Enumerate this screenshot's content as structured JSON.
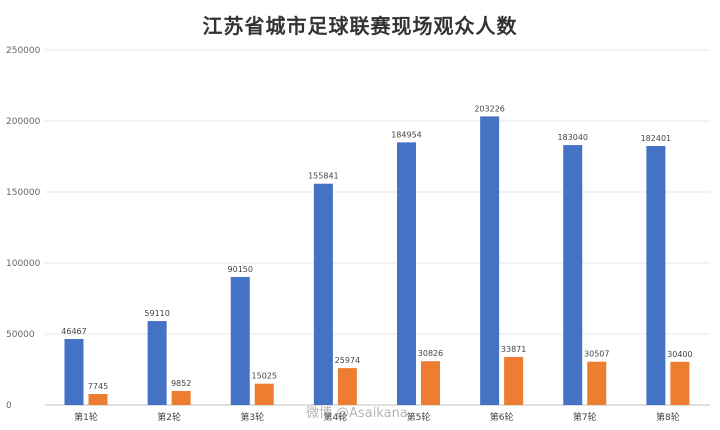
{
  "chart_data": {
    "type": "bar",
    "title": "江苏省城市足球联赛现场观众人数",
    "categories": [
      "第1轮",
      "第2轮",
      "第3轮",
      "第4轮",
      "第5轮",
      "第6轮",
      "第7轮",
      "第8轮"
    ],
    "series": [
      {
        "values": [
          46467,
          59110,
          90150,
          155841,
          184954,
          203226,
          183040,
          182401
        ],
        "color": "#4472C4"
      },
      {
        "values": [
          7745,
          9852,
          15025,
          25974,
          30826,
          33871,
          30507,
          30400
        ],
        "color": "#ED7D31"
      }
    ],
    "ylim": [
      0,
      250000
    ],
    "yticks": [
      "0",
      "50000",
      "100000",
      "150000",
      "200000",
      "250000"
    ],
    "grid": true,
    "legend": "none"
  },
  "watermark": "微博 @Asaikana"
}
